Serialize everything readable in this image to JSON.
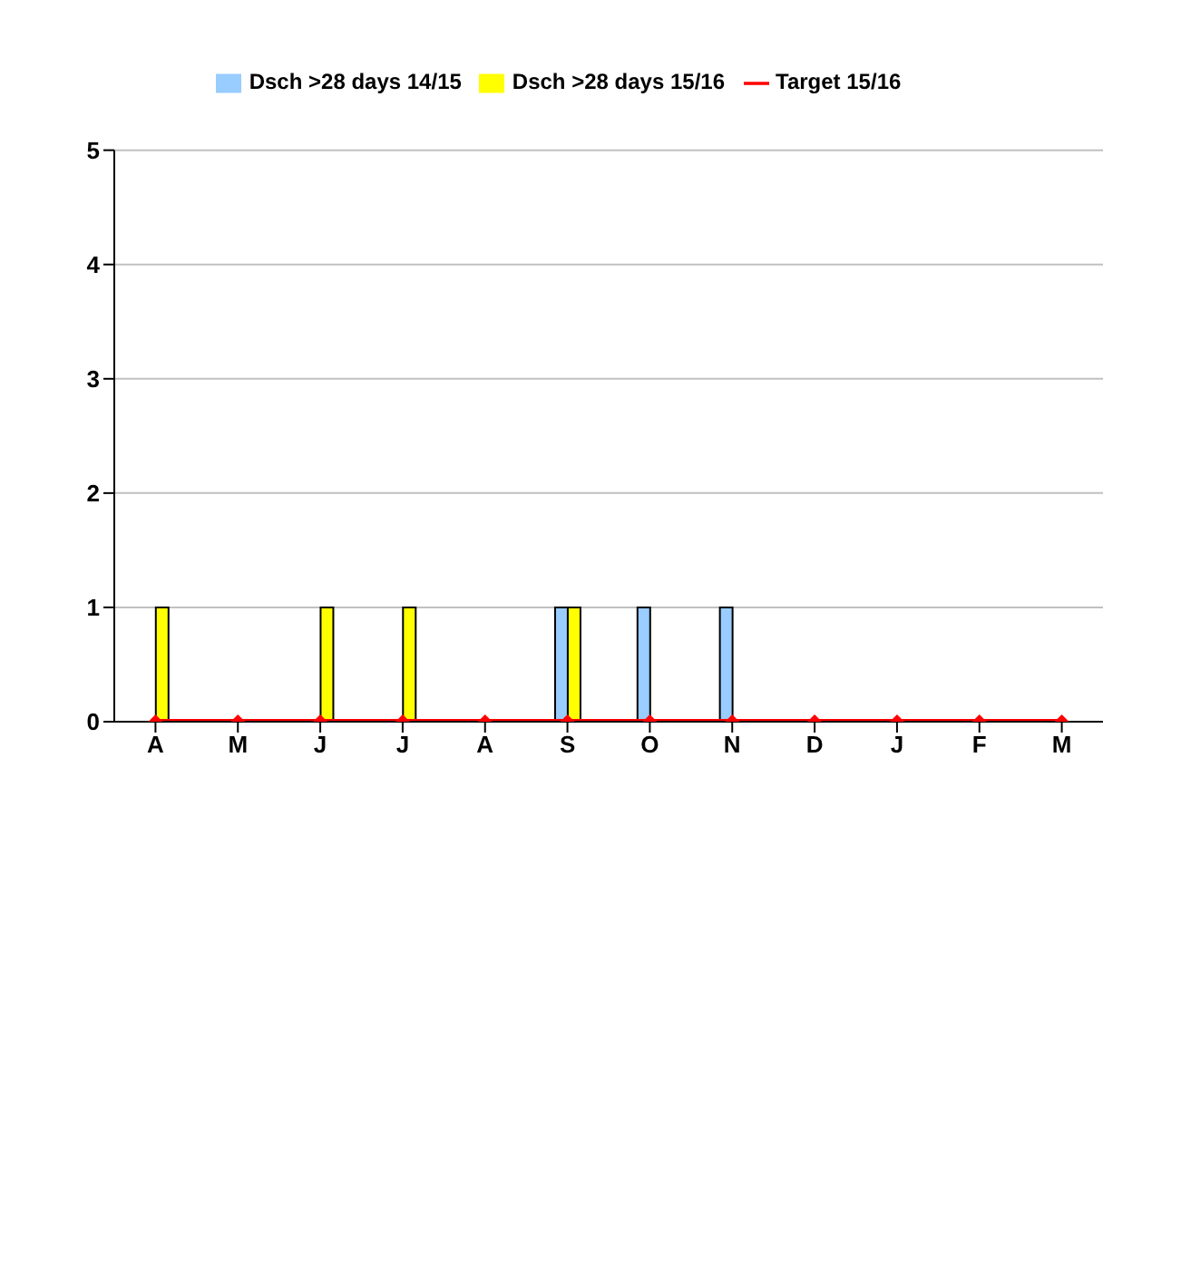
{
  "chart_data": {
    "type": "bar",
    "categories": [
      "A",
      "M",
      "J",
      "J",
      "A",
      "S",
      "O",
      "N",
      "D",
      "J",
      "F",
      "M"
    ],
    "series": [
      {
        "name": "Dsch >28 days 14/15",
        "color": "#99ccff",
        "values": [
          0,
          0,
          0,
          0,
          0,
          1,
          1,
          1,
          0,
          0,
          0,
          0
        ]
      },
      {
        "name": "Dsch >28 days 15/16",
        "color": "#ffff00",
        "values": [
          1,
          0,
          1,
          1,
          0,
          1,
          0,
          0,
          0,
          0,
          0,
          0
        ]
      },
      {
        "name": "Target 15/16",
        "type": "line",
        "color": "#ff0000",
        "marker": "diamond",
        "values": [
          0,
          0,
          0,
          0,
          0,
          0,
          0,
          0,
          0,
          0,
          0,
          0
        ]
      }
    ],
    "ylim": [
      0,
      5
    ],
    "yticks": [
      0,
      1,
      2,
      3,
      4,
      5
    ],
    "grid": "y",
    "legend": "top"
  }
}
